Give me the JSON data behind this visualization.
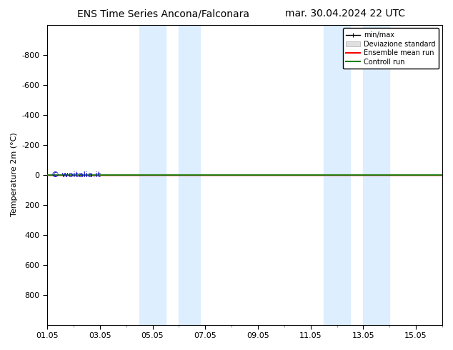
{
  "title_left": "ENS Time Series Ancona/Falconara",
  "title_right": "mar. 30.04.2024 22 UTC",
  "ylabel": "Temperature 2m (°C)",
  "watermark": "© woitalia.it",
  "ylim_top": -1000,
  "ylim_bottom": 1000,
  "yticks": [
    -800,
    -600,
    -400,
    -200,
    0,
    200,
    400,
    600,
    800
  ],
  "xtick_labels": [
    "01.05",
    "03.05",
    "05.05",
    "07.05",
    "09.05",
    "11.05",
    "13.05",
    "15.05"
  ],
  "xtick_positions": [
    0,
    2,
    4,
    6,
    8,
    10,
    12,
    14
  ],
  "total_days": 15,
  "shaded_regions": [
    [
      3.5,
      4.5
    ],
    [
      5.0,
      5.8
    ],
    [
      10.5,
      11.5
    ],
    [
      12.0,
      13.0
    ]
  ],
  "shaded_color": "#ddeeff",
  "ensemble_mean_color": "#ff0000",
  "control_run_color": "#008000",
  "minmax_color": "#000000",
  "std_color": "#d0d0d0",
  "background_color": "#ffffff",
  "flat_y_value": 0,
  "title_fontsize": 10,
  "axis_fontsize": 8,
  "watermark_fontsize": 8,
  "legend_items": [
    "min/max",
    "Deviazione standard",
    "Ensemble mean run",
    "Controll run"
  ]
}
